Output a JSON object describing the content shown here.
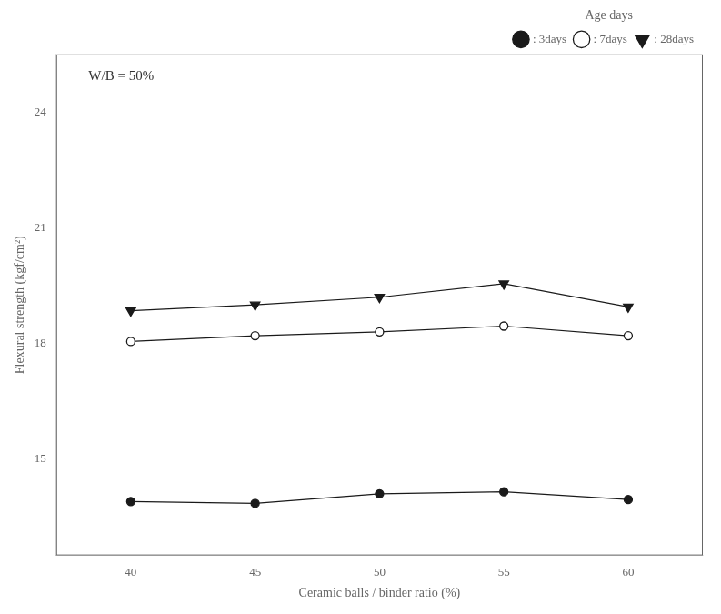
{
  "chart_data": {
    "type": "line",
    "x": [
      40,
      45,
      50,
      55,
      60
    ],
    "series": [
      {
        "name": ": 3days",
        "color": "#1a1a1a",
        "marker": "circle",
        "values": [
          13.9,
          13.85,
          14.1,
          14.15,
          13.95
        ]
      },
      {
        "name": ": 7days",
        "color": "#1a1a1a",
        "marker": "circle_open",
        "values": [
          18.05,
          18.2,
          18.3,
          18.45,
          18.2
        ]
      },
      {
        "name": ": 28days",
        "color": "#1a1a1a",
        "marker": "triangle_down",
        "values": [
          18.85,
          19.0,
          19.2,
          19.55,
          18.95
        ]
      }
    ],
    "xlabel": "Ceramic balls / binder ratio (%)",
    "ylabel": "Flexural strength (kgf/cm²)",
    "annotation": "W/B = 50%",
    "legend_title": "Age days",
    "legend": "upper right",
    "grid": false,
    "xlim": [
      37,
      63
    ],
    "ylim": [
      12.5,
      25.5
    ],
    "xticks": [
      40,
      45,
      50,
      55,
      60
    ],
    "yticks": [
      15,
      18,
      21,
      24
    ]
  }
}
